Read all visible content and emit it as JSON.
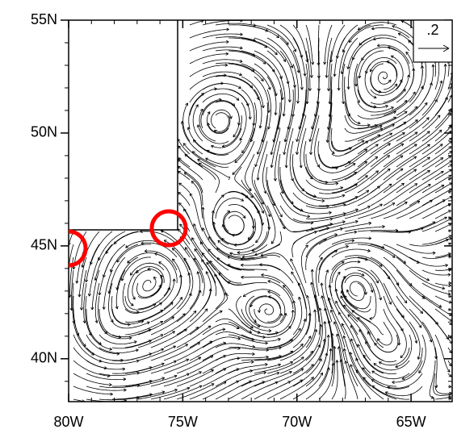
{
  "chart_data": {
    "type": "streamline",
    "xlim": [
      -80,
      -63.2
    ],
    "ylim": [
      38.1,
      55
    ],
    "xticks": [
      {
        "value": -80,
        "label": "80W"
      },
      {
        "value": -75,
        "label": "75W"
      },
      {
        "value": -70,
        "label": "70W"
      },
      {
        "value": -65,
        "label": "65W"
      }
    ],
    "yticks": [
      {
        "value": 40,
        "label": "40N"
      },
      {
        "value": 45,
        "label": "45N"
      },
      {
        "value": 50,
        "label": "50N"
      },
      {
        "value": 55,
        "label": "55N"
      }
    ],
    "reference_vector": {
      "value": 0.2,
      "label": ".2"
    },
    "color": "#000000"
  }
}
